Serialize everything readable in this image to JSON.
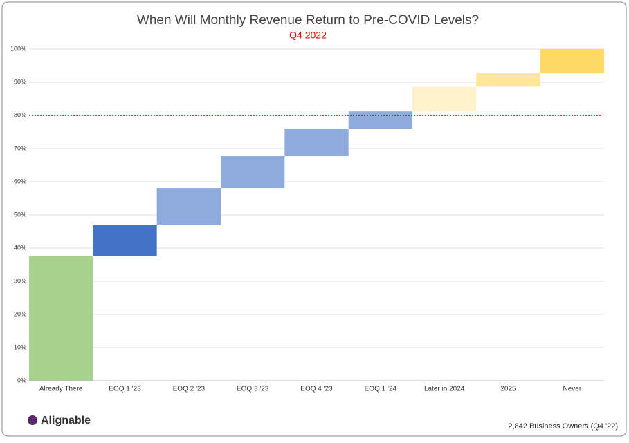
{
  "chart_data": {
    "type": "waterfall",
    "title": "When Will Monthly Revenue Return to Pre-COVID Levels?",
    "subtitle": "Q4 2022",
    "categories": [
      "Already There",
      "EOQ 1 '23",
      "EOQ 2 '23",
      "EOQ 3 '23",
      "EOQ 4 '23",
      "EOQ 1 '24",
      "Later in 2024",
      "2025",
      "Never"
    ],
    "values": [
      37.5,
      9.4,
      11.2,
      9.6,
      8.3,
      5.2,
      7.5,
      4.0,
      7.3
    ],
    "colors": [
      "#a9d18e",
      "#4472c4",
      "#8faadc",
      "#8faadc",
      "#8faadc",
      "#8faadc",
      "#fff2cc",
      "#ffe699",
      "#ffd966"
    ],
    "ylim": [
      0,
      100
    ],
    "yticks": [
      {
        "value": 0,
        "label": "0%"
      },
      {
        "value": 10,
        "label": "10%"
      },
      {
        "value": 20,
        "label": "20%"
      },
      {
        "value": 30,
        "label": "30%"
      },
      {
        "value": 40,
        "label": "40%"
      },
      {
        "value": 50,
        "label": "50%"
      },
      {
        "value": 60,
        "label": "60%"
      },
      {
        "value": 70,
        "label": "70%"
      },
      {
        "value": 80,
        "label": "80%"
      },
      {
        "value": 90,
        "label": "90%"
      },
      {
        "value": 100,
        "label": "100%"
      }
    ],
    "grid": true,
    "reference_line": 80,
    "reference_color": "#e00000"
  },
  "brand": "Alignable",
  "footnote": "2,842 Business Owners (Q4 '22)"
}
